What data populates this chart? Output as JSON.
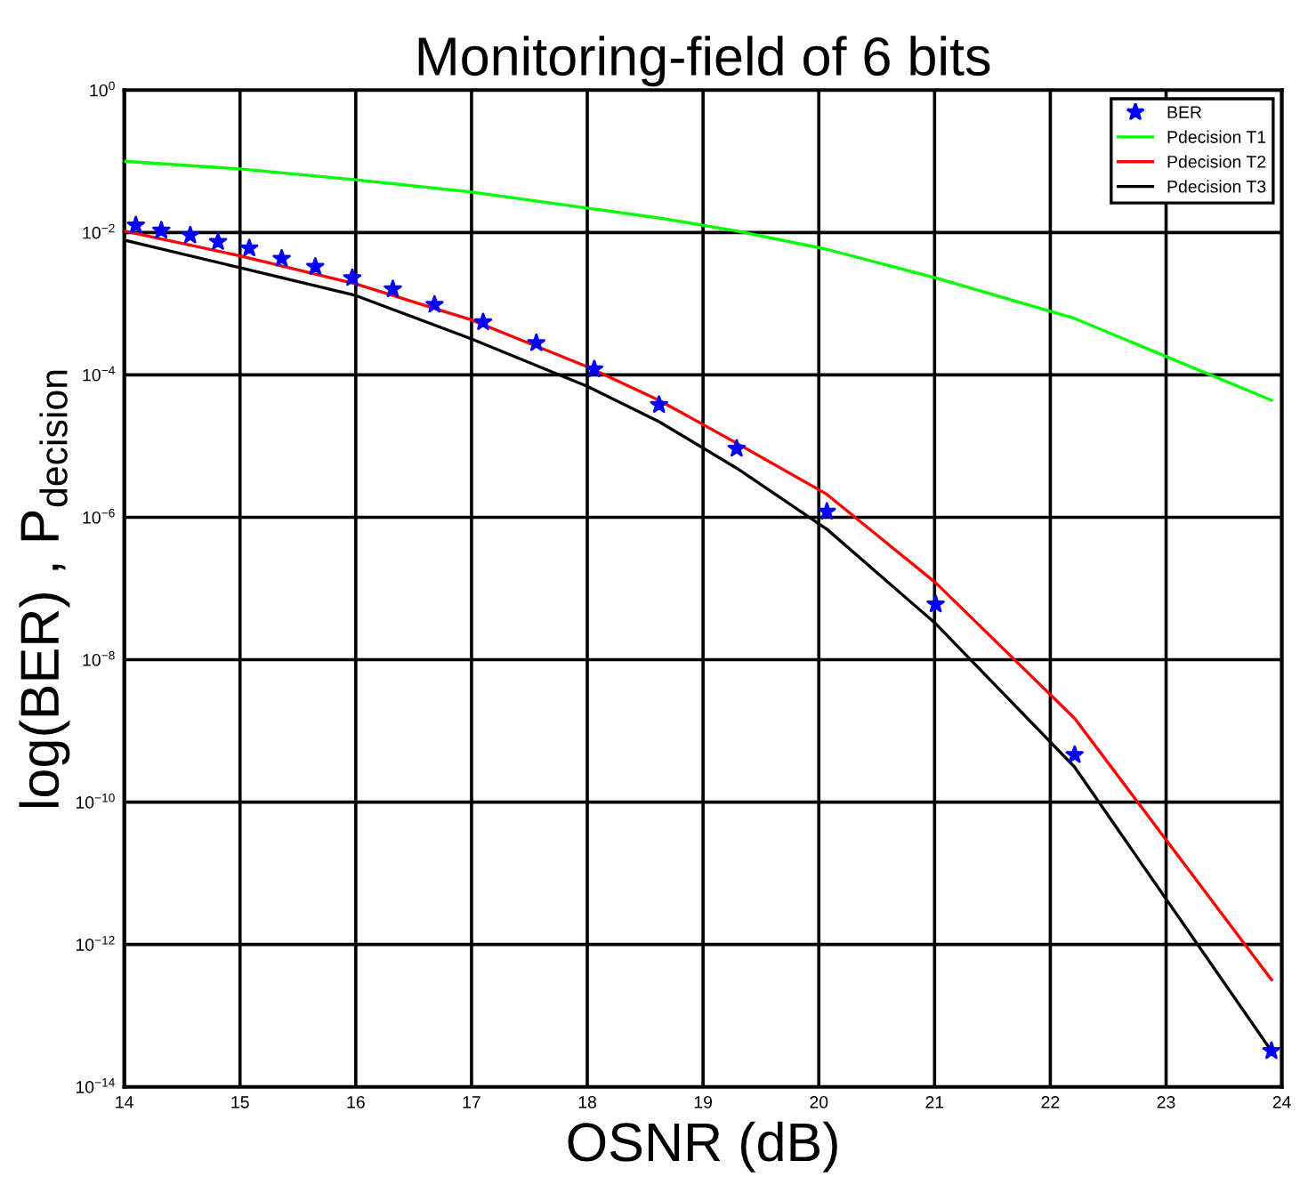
{
  "chart_data": {
    "type": "line",
    "title": "Monitoring-field of 6 bits",
    "xlabel": "OSNR (dB)",
    "ylabel": "log(BER) , P$_{decision}$",
    "log": "y",
    "grid": true,
    "legend": "top right",
    "xlim": [
      14,
      24
    ],
    "xticks": [
      14,
      15,
      16,
      17,
      18,
      19,
      20,
      21,
      22,
      23,
      24
    ],
    "ylim": [
      1e-14,
      1
    ],
    "yticks": [
      {
        "value": 1e-14,
        "label": "10$^{−14}$"
      },
      {
        "value": 1e-12,
        "label": "10$^{−12}$"
      },
      {
        "value": 1e-10,
        "label": "10$^{−10}$"
      },
      {
        "value": 1e-08,
        "label": "10$^{−8}$"
      },
      {
        "value": 1e-06,
        "label": "10$^{−6}$"
      },
      {
        "value": 0.0001,
        "label": "10$^{−4}$"
      },
      {
        "value": 0.01,
        "label": "10$^{−2}$"
      },
      {
        "value": 1,
        "label": "10$^{0}$"
      }
    ],
    "series": [
      {
        "name": "BER",
        "type": "scatter",
        "marker": "star",
        "color": "#0000ff",
        "x": [
          14.1,
          14.32,
          14.57,
          14.81,
          15.08,
          15.36,
          15.65,
          15.97,
          16.32,
          16.68,
          17.1,
          17.56,
          18.06,
          18.62,
          19.29,
          20.07,
          21.01,
          22.21,
          23.91
        ],
        "values": [
          0.0126,
          0.0107,
          0.0091,
          0.0074,
          0.006,
          0.0043,
          0.0033,
          0.0023,
          0.0016,
          0.00097,
          0.00055,
          0.00028,
          0.00012,
          3.8e-05,
          9.2e-06,
          1.2e-06,
          6e-08,
          4.6e-10,
          3.2e-14
        ]
      },
      {
        "name": "Pdecision T1",
        "color": "#00ff00",
        "x": [
          14,
          15,
          16,
          17,
          18,
          18.62,
          19.29,
          20.07,
          21.01,
          22.21,
          23.91
        ],
        "values": [
          0.1,
          0.078,
          0.055,
          0.037,
          0.022,
          0.016,
          0.0105,
          0.0058,
          0.0023,
          0.00062,
          4.4e-05
        ]
      },
      {
        "name": "Pdecision T2",
        "color": "#ff0000",
        "x": [
          14,
          15,
          16,
          17,
          18,
          18.62,
          19.29,
          20.07,
          21.01,
          22.21,
          23.91
        ],
        "values": [
          0.0105,
          0.0047,
          0.0019,
          0.00059,
          0.00013,
          4.4e-05,
          1.1e-05,
          2.1e-06,
          1.2e-07,
          1.5e-09,
          3.2e-13
        ]
      },
      {
        "name": "Pdecision T3",
        "color": "#000000",
        "x": [
          14,
          15,
          16,
          17,
          18,
          18.62,
          19.29,
          20.07,
          21.01,
          22.21,
          23.91
        ],
        "values": [
          0.0078,
          0.0032,
          0.0013,
          0.00032,
          6.9e-05,
          2.2e-05,
          4.9e-06,
          6.8e-07,
          3.2e-08,
          3.1e-10,
          3.2e-14
        ]
      }
    ]
  }
}
